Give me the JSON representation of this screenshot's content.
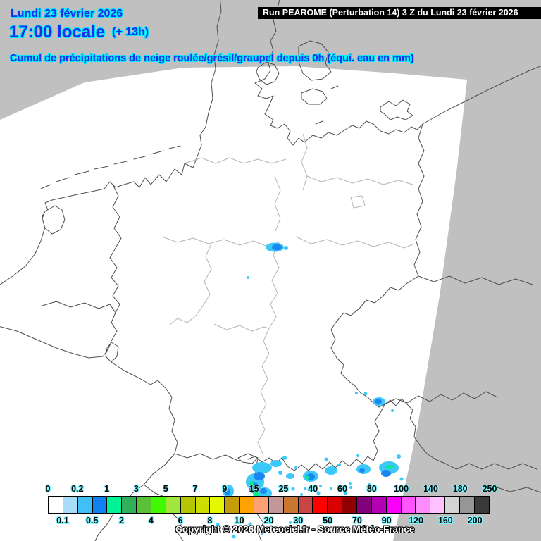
{
  "header": {
    "date": "Lundi 23 février 2026",
    "local_time": "17:00 locale",
    "offset": "(+ 13h)",
    "run_label": "Run PEAROME (Perturbation 14) 3 Z du Lundi 23 février 2026",
    "map_title": "Cumul de précipitations de neige roulée/grésil/graupel depuis 0h (équi. eau en mm)"
  },
  "footer": {
    "copyright": "Copyright © 2026 Meteociel.fr - Source Météo-France"
  },
  "colorbar": {
    "unit": "mm (équivalent eau)",
    "top_labels": [
      "0",
      "0.2",
      "1",
      "3",
      "5",
      "7",
      "9",
      "15",
      "25",
      "40",
      "60",
      "80",
      "100",
      "140",
      "180",
      "250"
    ],
    "bottom_labels": [
      "0.1",
      "0.5",
      "2",
      "4",
      "6",
      "8",
      "10",
      "20",
      "30",
      "50",
      "70",
      "90",
      "120",
      "160",
      "200"
    ],
    "boundaries": [
      0,
      0.1,
      0.2,
      0.5,
      1,
      2,
      3,
      4,
      5,
      6,
      7,
      8,
      9,
      10,
      15,
      20,
      25,
      30,
      40,
      50,
      60,
      70,
      80,
      90,
      100,
      120,
      140,
      160,
      180,
      200,
      250
    ],
    "cell_colors": [
      "#FFFFFF",
      "#A9DDF7",
      "#3FC1F7",
      "#1181F2",
      "#00F296",
      "#31AF5B",
      "#59C135",
      "#41FA01",
      "#A0E63C",
      "#B3C601",
      "#CEDE01",
      "#E6F801",
      "#C39D0A",
      "#FFA301",
      "#FCA273",
      "#C29897",
      "#C97730",
      "#C74545",
      "#FE0000",
      "#D80001",
      "#8E0001",
      "#83007A",
      "#B400B4",
      "#FA00FA",
      "#FF55FF",
      "#FF8CFF",
      "#FFC2FF",
      "#D4D4D4",
      "#969696",
      "#3A3A3A"
    ]
  },
  "colors": {
    "background_gray": "#C0C0C0",
    "domain_white": "#FFFFFF",
    "country_border": "#4D4D4D",
    "state_border": "#B5B5B5",
    "title_blue": "#1730E8",
    "title_glow_cyan": "#00E8FF",
    "tick_glow_cyan": "#7CF6FF",
    "precip_cyan": "#3CC8F8",
    "precip_blue": "#1B86F0",
    "precip_green": "#00EE8C"
  }
}
